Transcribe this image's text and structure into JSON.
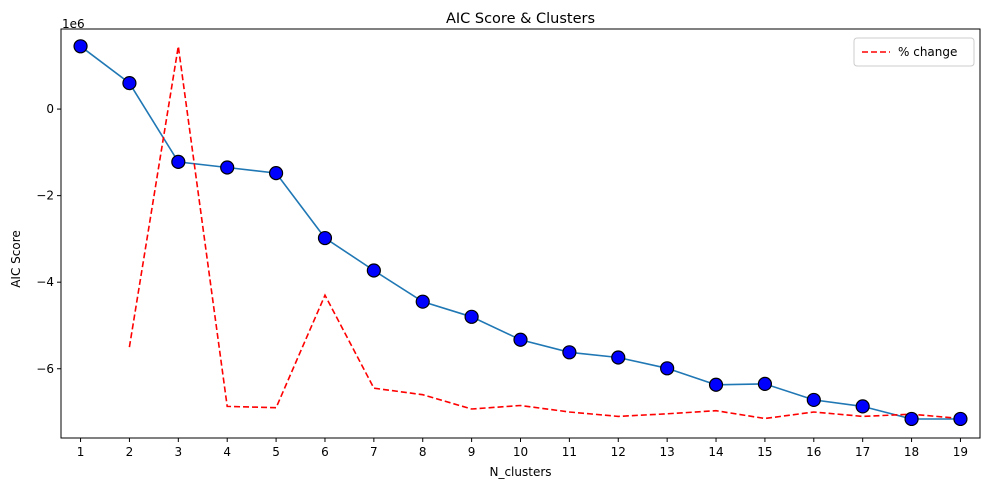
{
  "chart_data": {
    "type": "line",
    "title": "AIC Score & Clusters",
    "xlabel": "N_clusters",
    "ylabel": "AIC Score",
    "y_offset_label": "1e6",
    "x": [
      1,
      2,
      3,
      4,
      5,
      6,
      7,
      8,
      9,
      10,
      11,
      12,
      13,
      14,
      15,
      16,
      17,
      18,
      19
    ],
    "xlim": [
      0.6,
      19.4
    ],
    "ylim": [
      -7.6,
      1.85
    ],
    "x_ticks": [
      1,
      2,
      3,
      4,
      5,
      6,
      7,
      8,
      9,
      10,
      11,
      12,
      13,
      14,
      15,
      16,
      17,
      18,
      19
    ],
    "y_ticks": [
      0,
      -2,
      -4,
      -6
    ],
    "y_tick_labels": [
      "0",
      "−2",
      "−4",
      "−6"
    ],
    "grid": false,
    "legend_position": "top-right",
    "series": [
      {
        "key": "aic",
        "values": [
          1.45,
          0.6,
          -1.22,
          -1.35,
          -1.48,
          -2.98,
          -3.73,
          -4.45,
          -4.8,
          -5.33,
          -5.62,
          -5.74,
          -5.99,
          -6.37,
          -6.35,
          -6.72,
          -6.87,
          -7.16,
          -7.16
        ],
        "line_color": "#1f77b4",
        "marker_color": "#0000ff",
        "marker_edge": "#000000",
        "style": "solid-with-markers"
      },
      {
        "key": "pct",
        "name": "% change",
        "x": [
          2,
          3,
          4,
          5,
          6,
          7,
          8,
          9,
          10,
          11,
          12,
          13,
          14,
          15,
          16,
          17,
          18,
          19
        ],
        "values": [
          -5.5,
          1.45,
          -6.87,
          -6.9,
          -4.3,
          -6.45,
          -6.6,
          -6.93,
          -6.85,
          -7.0,
          -7.1,
          -7.04,
          -6.97,
          -7.15,
          -7.0,
          -7.1,
          -7.05,
          -7.15
        ],
        "color": "#ff0000",
        "style": "dashed"
      }
    ]
  }
}
